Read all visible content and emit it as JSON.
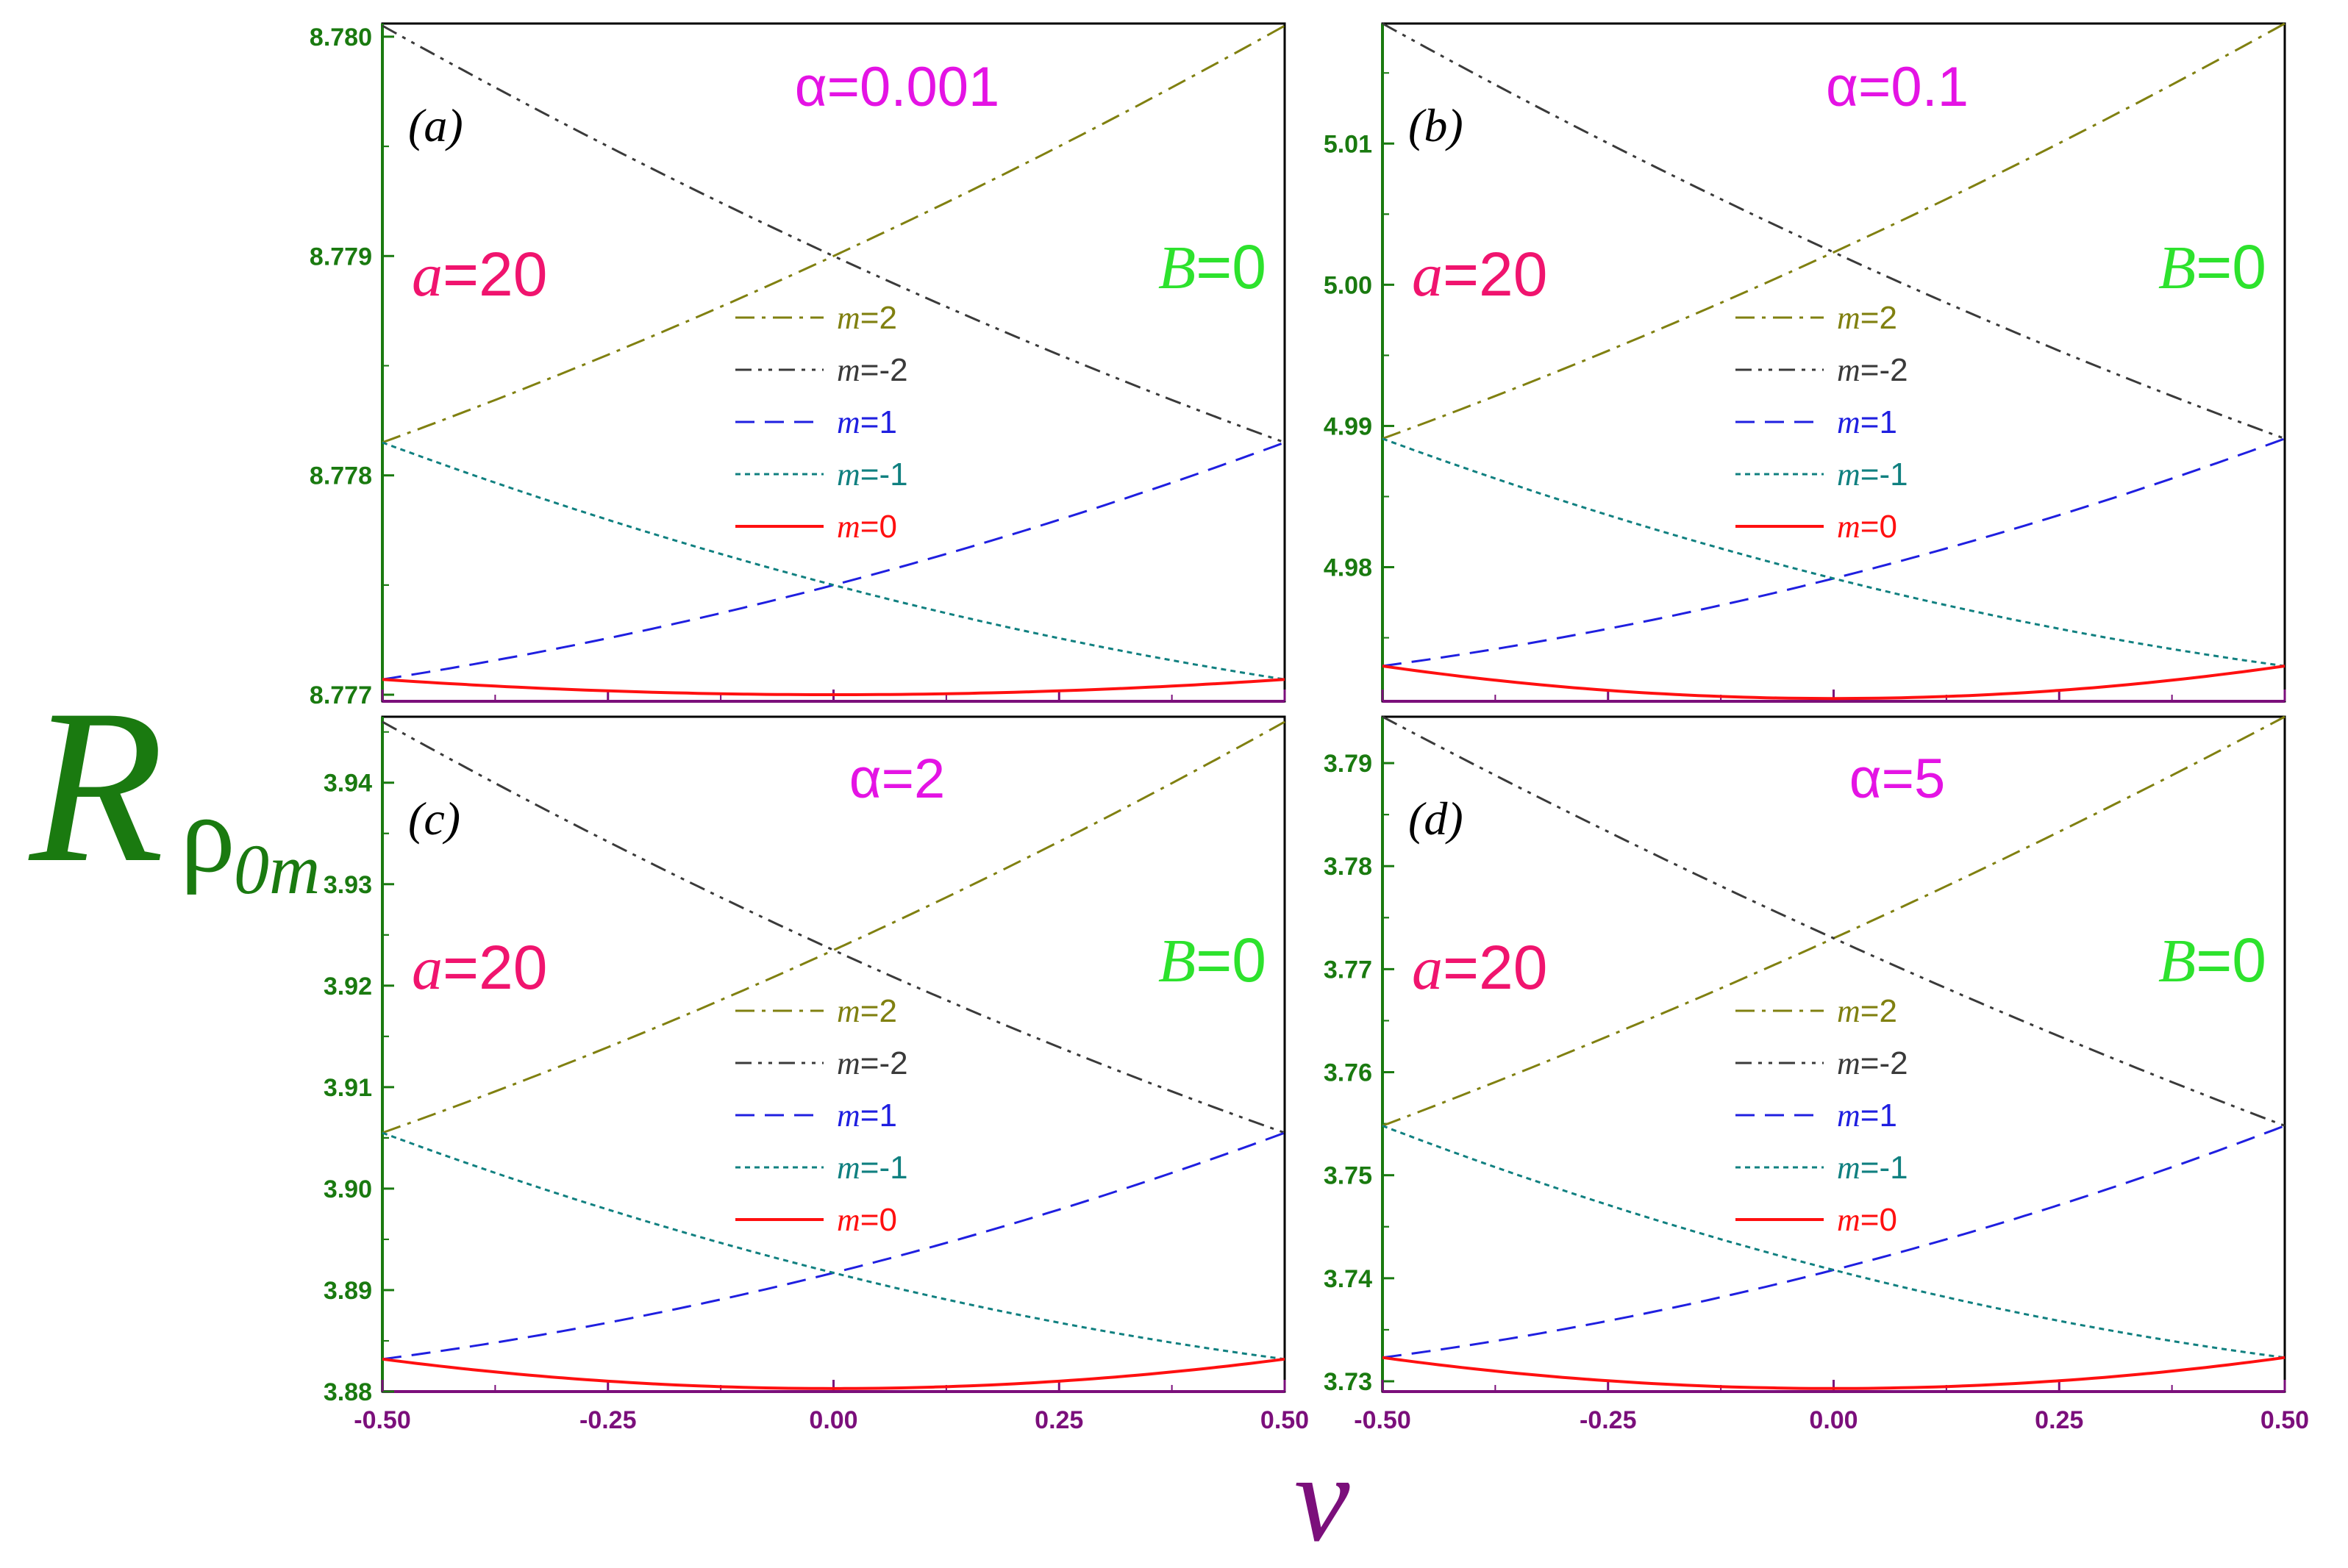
{
  "figure": {
    "ylabel": "R",
    "ylabel_sub": "ρ",
    "ylabel_sub2": "0m",
    "xlabel": "ν"
  },
  "chart_data": [
    {
      "type": "line",
      "panel": "(a)",
      "alpha_label": "α=0.001",
      "a_label": "a=20",
      "b_label": "B=0",
      "xlim": [
        -0.5,
        0.5
      ],
      "ylim": [
        8.77697,
        8.78006
      ],
      "x_ticks": [
        "-0.50",
        "-0.25",
        "0.00",
        "0.25",
        "0.50"
      ],
      "y_ticks": [
        {
          "value": 8.777,
          "label": "8.777"
        },
        {
          "value": 8.778,
          "label": "8.778"
        },
        {
          "value": 8.779,
          "label": "8.779"
        },
        {
          "value": 8.78,
          "label": "8.780"
        }
      ],
      "series": [
        {
          "name": "m=2",
          "color": "#808010",
          "style": "dashdot",
          "x": [
            -0.5,
            0,
            0.5
          ],
          "y": [
            8.77815,
            8.779,
            8.78005
          ]
        },
        {
          "name": "m=-2",
          "color": "#3a3a3a",
          "style": "dashdotdot",
          "x": [
            -0.5,
            0,
            0.5
          ],
          "y": [
            8.78005,
            8.779,
            8.77815
          ]
        },
        {
          "name": "m=1",
          "color": "#1f1fe0",
          "style": "dashed",
          "x": [
            -0.5,
            0,
            0.5
          ],
          "y": [
            8.77707,
            8.7775,
            8.77815
          ]
        },
        {
          "name": "m=-1",
          "color": "#108080",
          "style": "dotted",
          "x": [
            -0.5,
            0,
            0.5
          ],
          "y": [
            8.77815,
            8.7775,
            8.77707
          ]
        },
        {
          "name": "m=0",
          "color": "#ff1010",
          "style": "solid",
          "x": [
            -0.5,
            0,
            0.5
          ],
          "y": [
            8.77707,
            8.777,
            8.77707
          ]
        }
      ]
    },
    {
      "type": "line",
      "panel": "(b)",
      "alpha_label": "α=0.1",
      "a_label": "a=20",
      "b_label": "B=0",
      "xlim": [
        -0.5,
        0.5
      ],
      "ylim": [
        4.9705,
        5.0185
      ],
      "x_ticks": [
        "-0.50",
        "-0.25",
        "0.00",
        "0.25",
        "0.50"
      ],
      "y_ticks": [
        {
          "value": 4.98,
          "label": "4.98"
        },
        {
          "value": 4.99,
          "label": "4.99"
        },
        {
          "value": 5.0,
          "label": "5.00"
        },
        {
          "value": 5.01,
          "label": "5.01"
        }
      ],
      "series": [
        {
          "name": "m=2",
          "color": "#808010",
          "style": "dashdot",
          "x": [
            -0.5,
            0,
            0.5
          ],
          "y": [
            4.9891,
            5.0023,
            5.0185
          ]
        },
        {
          "name": "m=-2",
          "color": "#3a3a3a",
          "style": "dashdotdot",
          "x": [
            -0.5,
            0,
            0.5
          ],
          "y": [
            5.0185,
            5.0023,
            4.9891
          ]
        },
        {
          "name": "m=1",
          "color": "#1f1fe0",
          "style": "dashed",
          "x": [
            -0.5,
            0,
            0.5
          ],
          "y": [
            4.973,
            4.9792,
            4.9891
          ]
        },
        {
          "name": "m=-1",
          "color": "#108080",
          "style": "dotted",
          "x": [
            -0.5,
            0,
            0.5
          ],
          "y": [
            4.9891,
            4.9792,
            4.973
          ]
        },
        {
          "name": "m=0",
          "color": "#ff1010",
          "style": "solid",
          "x": [
            -0.5,
            0,
            0.5
          ],
          "y": [
            4.973,
            4.9707,
            4.973
          ]
        }
      ]
    },
    {
      "type": "line",
      "panel": "(c)",
      "alpha_label": "α=2",
      "a_label": "a=20",
      "b_label": "B=0",
      "xlim": [
        -0.5,
        0.5
      ],
      "ylim": [
        3.88,
        3.9465
      ],
      "x_ticks": [
        "-0.50",
        "-0.25",
        "0.00",
        "0.25",
        "0.50"
      ],
      "y_ticks": [
        {
          "value": 3.88,
          "label": "3.88"
        },
        {
          "value": 3.89,
          "label": "3.89"
        },
        {
          "value": 3.9,
          "label": "3.90"
        },
        {
          "value": 3.91,
          "label": "3.91"
        },
        {
          "value": 3.92,
          "label": "3.92"
        },
        {
          "value": 3.93,
          "label": "3.93"
        },
        {
          "value": 3.94,
          "label": "3.94"
        }
      ],
      "series": [
        {
          "name": "m=2",
          "color": "#808010",
          "style": "dashdot",
          "x": [
            -0.5,
            0,
            0.5
          ],
          "y": [
            3.9055,
            3.9235,
            3.946
          ]
        },
        {
          "name": "m=-2",
          "color": "#3a3a3a",
          "style": "dashdotdot",
          "x": [
            -0.5,
            0,
            0.5
          ],
          "y": [
            3.946,
            3.9235,
            3.9055
          ]
        },
        {
          "name": "m=1",
          "color": "#1f1fe0",
          "style": "dashed",
          "x": [
            -0.5,
            0,
            0.5
          ],
          "y": [
            3.8832,
            3.8917,
            3.9055
          ]
        },
        {
          "name": "m=-1",
          "color": "#108080",
          "style": "dotted",
          "x": [
            -0.5,
            0,
            0.5
          ],
          "y": [
            3.9055,
            3.8917,
            3.8832
          ]
        },
        {
          "name": "m=0",
          "color": "#ff1010",
          "style": "solid",
          "x": [
            -0.5,
            0,
            0.5
          ],
          "y": [
            3.8832,
            3.8803,
            3.8832
          ]
        }
      ]
    },
    {
      "type": "line",
      "panel": "(d)",
      "alpha_label": "α=5",
      "a_label": "a=20",
      "b_label": "B=0",
      "xlim": [
        -0.5,
        0.5
      ],
      "ylim": [
        3.729,
        3.7945
      ],
      "x_ticks": [
        "-0.50",
        "-0.25",
        "0.00",
        "0.25",
        "0.50"
      ],
      "y_ticks": [
        {
          "value": 3.73,
          "label": "3.73"
        },
        {
          "value": 3.74,
          "label": "3.74"
        },
        {
          "value": 3.75,
          "label": "3.75"
        },
        {
          "value": 3.76,
          "label": "3.76"
        },
        {
          "value": 3.77,
          "label": "3.77"
        },
        {
          "value": 3.78,
          "label": "3.78"
        },
        {
          "value": 3.79,
          "label": "3.79"
        }
      ],
      "series": [
        {
          "name": "m=2",
          "color": "#808010",
          "style": "dashdot",
          "x": [
            -0.5,
            0,
            0.5
          ],
          "y": [
            3.7548,
            3.773,
            3.7945
          ]
        },
        {
          "name": "m=-2",
          "color": "#3a3a3a",
          "style": "dashdotdot",
          "x": [
            -0.5,
            0,
            0.5
          ],
          "y": [
            3.7945,
            3.773,
            3.7548
          ]
        },
        {
          "name": "m=1",
          "color": "#1f1fe0",
          "style": "dashed",
          "x": [
            -0.5,
            0,
            0.5
          ],
          "y": [
            3.7323,
            3.7408,
            3.7548
          ]
        },
        {
          "name": "m=-1",
          "color": "#108080",
          "style": "dotted",
          "x": [
            -0.5,
            0,
            0.5
          ],
          "y": [
            3.7548,
            3.7408,
            3.7323
          ]
        },
        {
          "name": "m=0",
          "color": "#ff1010",
          "style": "solid",
          "x": [
            -0.5,
            0,
            0.5
          ],
          "y": [
            3.7323,
            3.7293,
            3.7323
          ]
        }
      ]
    }
  ]
}
